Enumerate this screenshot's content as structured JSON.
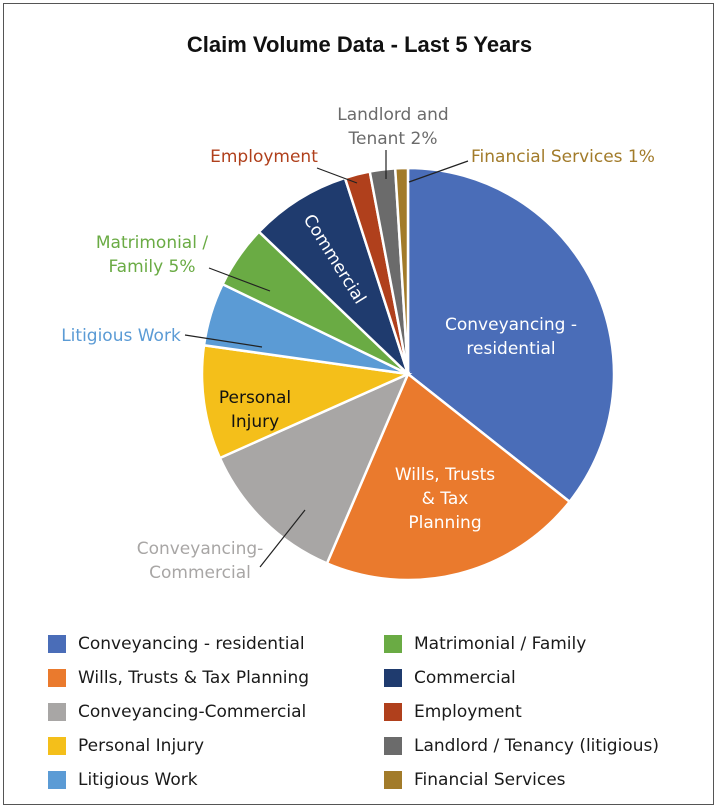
{
  "chart_data": {
    "type": "pie",
    "title": "Claim Volume Data - Last 5 Years",
    "slices": [
      {
        "name": "Conveyancing - residential",
        "value": 36,
        "color": "#4a6db8"
      },
      {
        "name": "Wills, Trusts & Tax Planning",
        "value": 21,
        "color": "#ea7a2d"
      },
      {
        "name": "Conveyancing-Commercial",
        "value": 12,
        "color": "#a8a6a5"
      },
      {
        "name": "Personal Injury",
        "value": 9,
        "color": "#f4bf1a"
      },
      {
        "name": "Litigious Work",
        "value": 5,
        "color": "#5b9bd5"
      },
      {
        "name": "Matrimonial / Family",
        "value": 5,
        "color": "#6aab44"
      },
      {
        "name": "Commercial",
        "value": 8,
        "color": "#1f3b6e"
      },
      {
        "name": "Employment",
        "value": 2,
        "color": "#b0401c"
      },
      {
        "name": "Landlord / Tenancy (litigious)",
        "value": 2,
        "color": "#6b6b6b"
      },
      {
        "name": "Financial Services",
        "value": 1,
        "color": "#a27b2a"
      }
    ],
    "slice_labels": {
      "conveyancing_residential": [
        "Conveyancing -",
        "residential"
      ],
      "wills": [
        "Wills, Trusts",
        "& Tax",
        "Planning"
      ],
      "conveyancing_commercial": [
        "Conveyancing-",
        "Commercial"
      ],
      "personal_injury": [
        "Personal",
        "Injury"
      ],
      "litigious": [
        "Litigious Work"
      ],
      "matrimonial": [
        "Matrimonial /",
        "Family 5%"
      ],
      "commercial": [
        "Commercial"
      ],
      "employment": [
        "Employment"
      ],
      "landlord": [
        "Landlord and",
        "Tenant 2%"
      ],
      "financial": [
        "Financial Services 1%"
      ]
    },
    "legend_placement": "bottom"
  }
}
